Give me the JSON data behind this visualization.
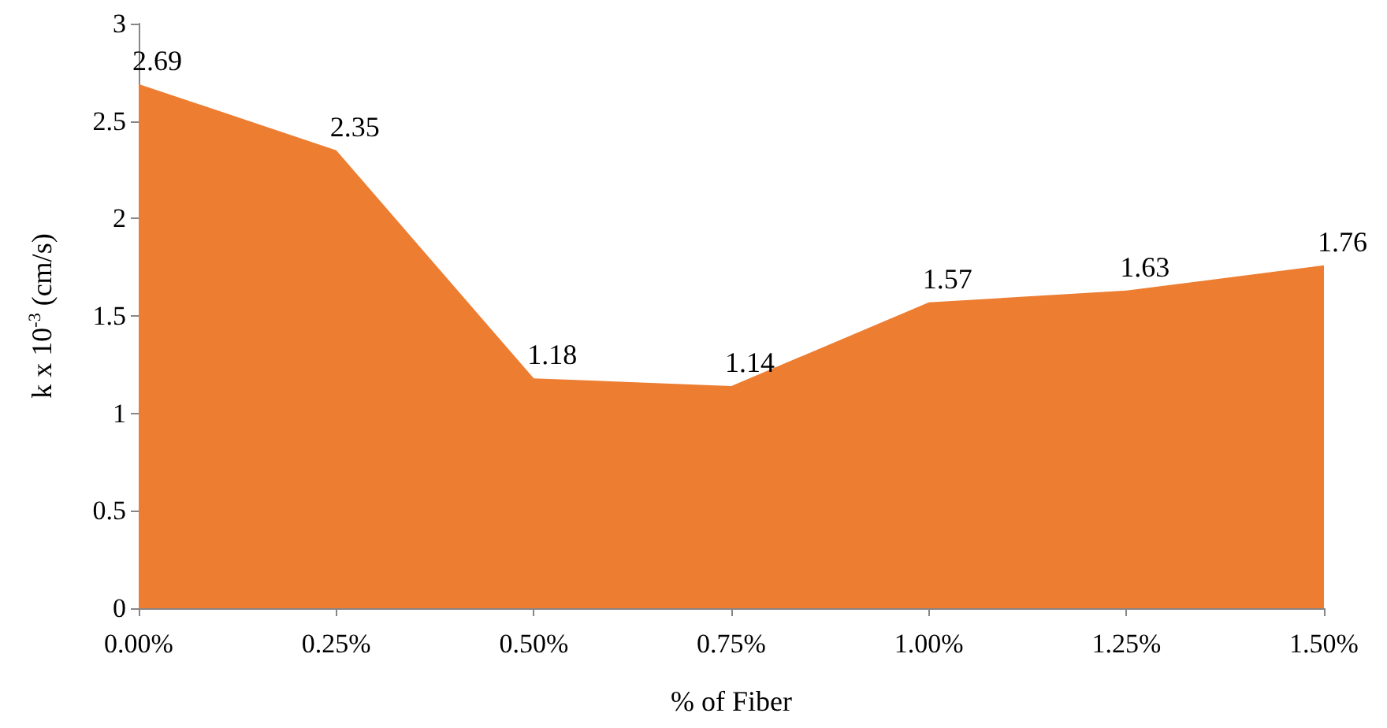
{
  "chart_data": {
    "type": "area",
    "xlabel": "% of Fiber",
    "ylabel": "k x 10$^{-3}$ (cm/s)",
    "categories": [
      "0.00%",
      "0.25%",
      "0.50%",
      "0.75%",
      "1.00%",
      "1.25%",
      "1.50%"
    ],
    "series": [
      {
        "color": "#ed7d31",
        "values": [
          2.69,
          2.35,
          1.18,
          1.14,
          1.57,
          1.63,
          1.76
        ]
      }
    ],
    "ylim": [
      0,
      3
    ],
    "yticks": [
      0,
      0.5,
      1,
      1.5,
      2,
      2.5,
      3
    ],
    "data_labels": true,
    "grid": false
  }
}
